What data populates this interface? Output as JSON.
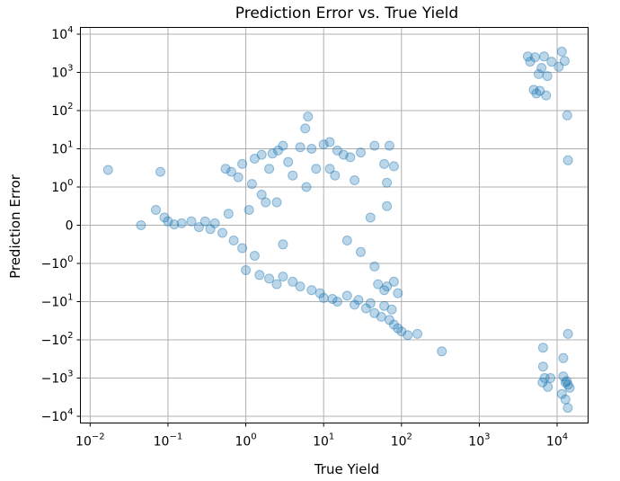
{
  "chart_data": {
    "type": "scatter",
    "title": "Prediction Error vs. True Yield",
    "xlabel": "True Yield",
    "ylabel": "Prediction Error",
    "x_scale": "log",
    "y_scale": "symlog",
    "y_linthresh": 1,
    "xlim": [
      0.0075,
      25000
    ],
    "ylim": [
      -15000,
      15000
    ],
    "x_ticks": [
      {
        "base": "10",
        "exp": "−2",
        "value": 0.01
      },
      {
        "base": "10",
        "exp": "−1",
        "value": 0.1
      },
      {
        "base": "10",
        "exp": "0",
        "value": 1
      },
      {
        "base": "10",
        "exp": "1",
        "value": 10
      },
      {
        "base": "10",
        "exp": "2",
        "value": 100
      },
      {
        "base": "10",
        "exp": "3",
        "value": 1000
      },
      {
        "base": "10",
        "exp": "4",
        "value": 10000
      }
    ],
    "y_ticks": [
      {
        "label": "10",
        "exp": "4",
        "value": 10000
      },
      {
        "label": "10",
        "exp": "3",
        "value": 1000
      },
      {
        "label": "10",
        "exp": "2",
        "value": 100
      },
      {
        "label": "10",
        "exp": "1",
        "value": 10
      },
      {
        "label": "10",
        "exp": "0",
        "value": 1
      },
      {
        "label": "0",
        "exp": "",
        "value": 0
      },
      {
        "label": "−10",
        "exp": "0",
        "value": -1
      },
      {
        "label": "−10",
        "exp": "1",
        "value": -10
      },
      {
        "label": "−10",
        "exp": "2",
        "value": -100
      },
      {
        "label": "−10",
        "exp": "3",
        "value": -1000
      },
      {
        "label": "−10",
        "exp": "4",
        "value": -10000
      }
    ],
    "grid": true,
    "marker_color": "#1f77b4",
    "marker_alpha": 0.3,
    "series": [
      {
        "points": [
          [
            0.017,
            2.8
          ],
          [
            0.08,
            2.5
          ],
          [
            0.045,
            0.0
          ],
          [
            0.07,
            0.4
          ],
          [
            0.09,
            0.2
          ],
          [
            0.55,
            3.0
          ],
          [
            0.65,
            2.5
          ],
          [
            0.8,
            1.8
          ],
          [
            0.9,
            4.0
          ],
          [
            1.3,
            5.5
          ],
          [
            1.6,
            7.0
          ],
          [
            2.2,
            7.5
          ],
          [
            2.6,
            9.0
          ],
          [
            3.0,
            12.0
          ],
          [
            5.0,
            11.0
          ],
          [
            5.8,
            34.0
          ],
          [
            6.3,
            70.0
          ],
          [
            7.0,
            10.0
          ],
          [
            10.0,
            13.0
          ],
          [
            12.0,
            15.0
          ],
          [
            15.0,
            9.0
          ],
          [
            18.0,
            7.0
          ],
          [
            22.0,
            6.0
          ],
          [
            30.0,
            8.0
          ],
          [
            45.0,
            12.0
          ],
          [
            60.0,
            4.0
          ],
          [
            70.0,
            12.0
          ],
          [
            80.0,
            3.5
          ],
          [
            12.0,
            3.0
          ],
          [
            14.0,
            2.0
          ],
          [
            25.0,
            1.5
          ],
          [
            65.0,
            1.3
          ],
          [
            65.0,
            0.5
          ],
          [
            40.0,
            0.2
          ],
          [
            30.0,
            -0.7
          ],
          [
            45.0,
            -1.2
          ],
          [
            8.0,
            3.0
          ],
          [
            4.0,
            2.0
          ],
          [
            2.0,
            3.0
          ],
          [
            3.5,
            4.5
          ],
          [
            1.2,
            1.2
          ],
          [
            1.6,
            0.8
          ],
          [
            2.5,
            0.6
          ],
          [
            3.0,
            -0.5
          ],
          [
            6.0,
            1.0
          ],
          [
            20.0,
            -0.4
          ],
          [
            65.0,
            -4.0
          ],
          [
            80.0,
            -3.0
          ],
          [
            60.0,
            -5.0
          ],
          [
            50.0,
            -3.5
          ],
          [
            90.0,
            -6.0
          ],
          [
            10.0,
            -8.0
          ],
          [
            15.0,
            -10.0
          ],
          [
            25.0,
            -12.0
          ],
          [
            35.0,
            -15.0
          ],
          [
            45.0,
            -20.0
          ],
          [
            55.0,
            -25.0
          ],
          [
            70.0,
            -30.0
          ],
          [
            80.0,
            -40.0
          ],
          [
            90.0,
            -50.0
          ],
          [
            100.0,
            -60.0
          ],
          [
            120.0,
            -75.0
          ],
          [
            160.0,
            -70.0
          ],
          [
            330.0,
            -200.0
          ],
          [
            20.0,
            -7.0
          ],
          [
            28.0,
            -9.0
          ],
          [
            40.0,
            -11.0
          ],
          [
            60.0,
            -13.0
          ],
          [
            75.0,
            -16.0
          ],
          [
            4.0,
            -3.0
          ],
          [
            5.0,
            -4.0
          ],
          [
            7.0,
            -5.0
          ],
          [
            9.0,
            -6.0
          ],
          [
            13.0,
            -8.5
          ],
          [
            1.5,
            -2.0
          ],
          [
            2.0,
            -2.5
          ],
          [
            3.0,
            -2.2
          ],
          [
            1.0,
            -1.5
          ],
          [
            2.5,
            -3.5
          ],
          [
            0.3,
            0.1
          ],
          [
            0.35,
            -0.1
          ],
          [
            0.4,
            0.05
          ],
          [
            0.5,
            -0.2
          ],
          [
            0.6,
            0.3
          ],
          [
            0.2,
            0.1
          ],
          [
            0.25,
            -0.05
          ],
          [
            0.15,
            0.05
          ],
          [
            0.12,
            0.02
          ],
          [
            0.1,
            0.1
          ],
          [
            0.7,
            -0.4
          ],
          [
            0.9,
            -0.6
          ],
          [
            1.1,
            0.4
          ],
          [
            1.3,
            -0.8
          ],
          [
            1.8,
            0.6
          ],
          [
            4200.0,
            2600.0
          ],
          [
            4500.0,
            1900.0
          ],
          [
            5200.0,
            2500.0
          ],
          [
            5800.0,
            900.0
          ],
          [
            6300.0,
            1300.0
          ],
          [
            6800.0,
            2600.0
          ],
          [
            7500.0,
            800.0
          ],
          [
            8500.0,
            1900.0
          ],
          [
            10500.0,
            1400.0
          ],
          [
            11500.0,
            3500.0
          ],
          [
            12500.0,
            2000.0
          ],
          [
            13500.0,
            75.0
          ],
          [
            13800.0,
            5.0
          ],
          [
            5000.0,
            350.0
          ],
          [
            5400.0,
            280.0
          ],
          [
            6000.0,
            330.0
          ],
          [
            7200.0,
            250.0
          ],
          [
            6600.0,
            -160.0
          ],
          [
            13800.0,
            -70.0
          ],
          [
            6500.0,
            -1300.0
          ],
          [
            6900.0,
            -1000.0
          ],
          [
            7600.0,
            -1700.0
          ],
          [
            8200.0,
            -1000.0
          ],
          [
            11500.0,
            -2600.0
          ],
          [
            12000.0,
            -900.0
          ],
          [
            12800.0,
            -1300.0
          ],
          [
            13300.0,
            -1200.0
          ],
          [
            13800.0,
            -1500.0
          ],
          [
            14500.0,
            -1800.0
          ],
          [
            12800.0,
            -3600.0
          ],
          [
            13700.0,
            -6000.0
          ],
          [
            12000.0,
            -300.0
          ],
          [
            6600.0,
            -500.0
          ]
        ]
      }
    ]
  }
}
